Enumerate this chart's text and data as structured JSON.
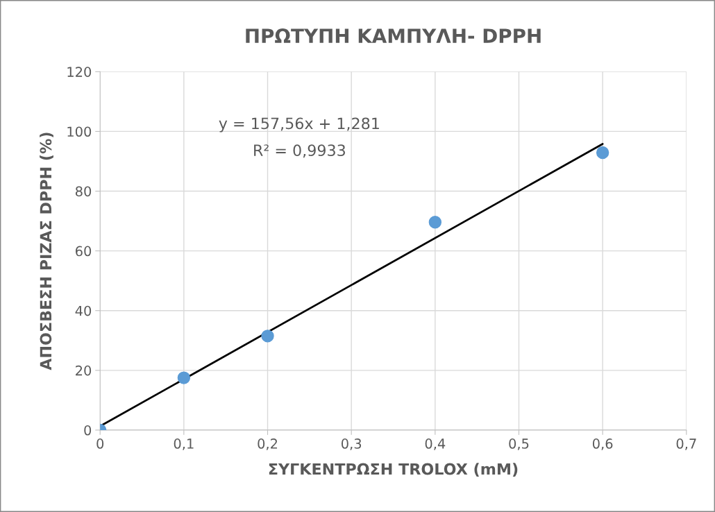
{
  "chart_data": {
    "type": "scatter",
    "title": "ΠΡΩΤΥΠΗ ΚΑΜΠΥΛΗ- DPPH",
    "xlabel": "ΣΥΓΚΕΝΤΡΩΣΗ TROLOX (mM)",
    "ylabel": "ΑΠΟΣΒΕΣΗ ΡΙΖΑΣ DPPH (%)",
    "x": [
      0,
      0.1,
      0.2,
      0.4,
      0.6
    ],
    "series": [
      {
        "color": "#5b9bd5",
        "values": [
          0,
          17.5,
          31.5,
          69.6,
          92.9
        ],
        "marker": "circle"
      },
      {
        "type": "line",
        "color": "#000000",
        "x": [
          0,
          0.6
        ],
        "values": [
          1.3,
          95.8
        ],
        "line_style": "solid",
        "marker": "none"
      }
    ],
    "annotations": [
      "y = 157,56x + 1,281",
      "R² = 0,9933"
    ],
    "xlim": [
      0,
      0.7
    ],
    "ylim": [
      0,
      120
    ],
    "xticks": [
      0,
      {
        "value": 0.1,
        "label": "0,1"
      },
      {
        "value": 0.2,
        "label": "0,2"
      },
      {
        "value": 0.3,
        "label": "0,3"
      },
      {
        "value": 0.4,
        "label": "0,4"
      },
      {
        "value": 0.5,
        "label": "0,5"
      },
      {
        "value": 0.6,
        "label": "0,6"
      },
      {
        "value": 0.7,
        "label": "0,7"
      }
    ],
    "yticks": [
      0,
      20,
      40,
      60,
      80,
      100,
      120
    ],
    "grid": true,
    "legend": false
  }
}
